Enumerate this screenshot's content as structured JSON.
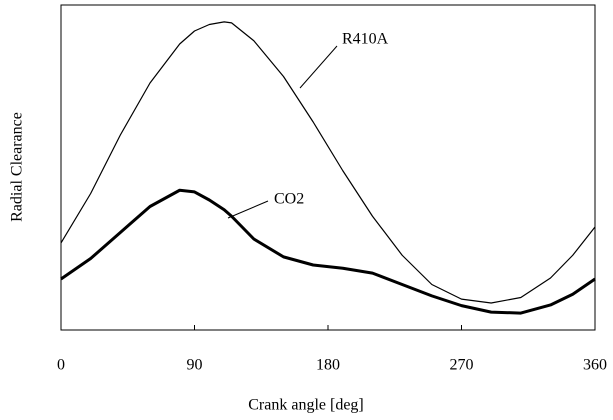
{
  "chart_data": {
    "type": "line",
    "xlabel": "Crank angle [deg]",
    "ylabel": "Radial Clearance",
    "x": [
      0,
      20,
      40,
      60,
      80,
      90,
      100,
      110,
      115,
      130,
      150,
      170,
      190,
      210,
      230,
      250,
      270,
      290,
      310,
      330,
      345,
      360
    ],
    "series": [
      {
        "name": "R410A",
        "color": "#000000",
        "width": 1.2,
        "values": [
          26.8,
          42,
          60,
          76,
          88,
          92,
          94,
          94.8,
          94.5,
          89,
          78,
          64,
          49,
          35,
          23,
          14,
          9.5,
          8.3,
          10,
          16,
          23,
          31.7
        ]
      },
      {
        "name": "CO2",
        "color": "#000000",
        "width": 3,
        "values": [
          15.7,
          22,
          30,
          38,
          43,
          42.5,
          40,
          37,
          35,
          28,
          22.5,
          20,
          19,
          17.5,
          14,
          10.5,
          7.5,
          5.5,
          5.2,
          7.7,
          11,
          15.7
        ]
      }
    ],
    "xlim": [
      0,
      360
    ],
    "xticks": [
      0,
      90,
      180,
      270,
      360
    ],
    "ylim": [
      0,
      100
    ]
  }
}
